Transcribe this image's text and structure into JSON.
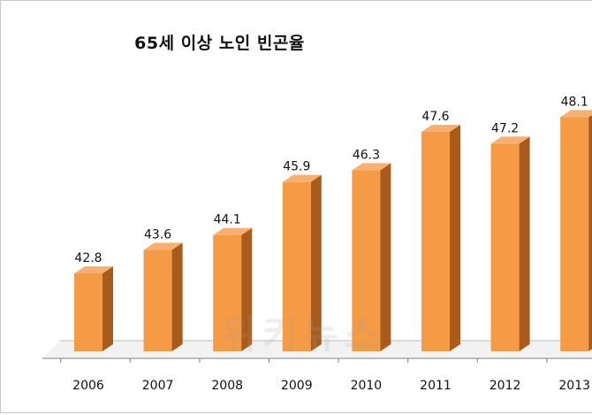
{
  "chart_data": {
    "type": "bar",
    "title": "65세 이상 노인 빈곤율",
    "categories": [
      "2006",
      "2007",
      "2008",
      "2009",
      "2010",
      "2011",
      "2012",
      "2013"
    ],
    "values": [
      42.8,
      43.6,
      44.1,
      45.9,
      46.3,
      47.6,
      47.2,
      48.1
    ],
    "value_labels": [
      "42.8",
      "43.6",
      "44.1",
      "45.9",
      "46.3",
      "47.6",
      "47.2",
      "48.1"
    ],
    "style": "3d-column",
    "grid": false,
    "legend": "none",
    "colors": {
      "front": "#f59a45",
      "side": "#a85b1b",
      "top": "#f7b071",
      "floor": "#bdbdbd"
    }
  },
  "watermark": "위키뉴스"
}
